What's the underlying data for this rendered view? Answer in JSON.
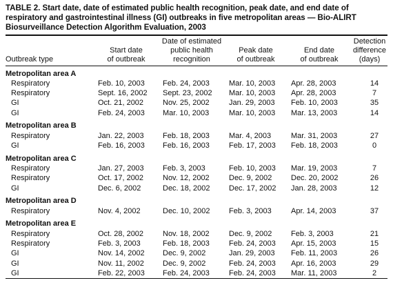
{
  "title": "TABLE 2. Start date, date of estimated public health recognition, peak date, and end date of respiratory and gastrointestinal illness (GI) outbreaks in five metropolitan areas — Bio-ALIRT Biosurveillance Detection Algorithm Evaluation, 2003",
  "columns": [
    [
      "Outbreak type"
    ],
    [
      "Start date",
      "of outbreak"
    ],
    [
      "Date of estimated",
      "public health",
      "recognition"
    ],
    [
      "Peak date",
      "of outbreak"
    ],
    [
      "End date",
      "of outbreak"
    ],
    [
      "Detection",
      "difference",
      "(days)"
    ]
  ],
  "groups": [
    {
      "name": "Metropolitan area A",
      "rows": [
        [
          "Respiratory",
          "Feb. 10, 2003",
          "Feb. 24, 2003",
          "Mar. 10, 2003",
          "Apr. 28, 2003",
          "14"
        ],
        [
          "Respiratory",
          "Sept. 16, 2002",
          "Sept. 23, 2002",
          "Mar. 10, 2003",
          "Apr. 28, 2003",
          "7"
        ],
        [
          "GI",
          "Oct. 21, 2002",
          "Nov. 25, 2002",
          "Jan. 29, 2003",
          "Feb. 10, 2003",
          "35"
        ],
        [
          "GI",
          "Feb. 24, 2003",
          "Mar. 10, 2003",
          "Mar. 10, 2003",
          "Mar. 13, 2003",
          "14"
        ]
      ]
    },
    {
      "name": "Metropolitan area B",
      "rows": [
        [
          "Respiratory",
          "Jan. 22, 2003",
          "Feb. 18, 2003",
          "Mar. 4, 2003",
          "Mar. 31, 2003",
          "27"
        ],
        [
          "GI",
          "Feb. 16, 2003",
          "Feb. 16, 2003",
          "Feb. 17, 2003",
          "Feb. 18, 2003",
          "0"
        ]
      ]
    },
    {
      "name": "Metropolitan area C",
      "rows": [
        [
          "Respiratory",
          "Jan. 27, 2003",
          "Feb. 3, 2003",
          "Feb. 10, 2003",
          "Mar. 19, 2003",
          "7"
        ],
        [
          "Respiratory",
          "Oct. 17, 2002",
          "Nov. 12, 2002",
          "Dec. 9, 2002",
          "Dec. 20, 2002",
          "26"
        ],
        [
          "GI",
          "Dec. 6, 2002",
          "Dec. 18, 2002",
          "Dec. 17, 2002",
          "Jan. 28, 2003",
          "12"
        ]
      ]
    },
    {
      "name": "Metropolitan area D",
      "rows": [
        [
          "Respiratory",
          "Nov. 4, 2002",
          "Dec. 10, 2002",
          "Feb. 3, 2003",
          "Apr. 14, 2003",
          "37"
        ]
      ]
    },
    {
      "name": "Metropolitan area E",
      "rows": [
        [
          "Respiratory",
          "Oct. 28, 2002",
          "Nov. 18, 2002",
          "Dec. 9, 2002",
          "Feb. 3, 2003",
          "21"
        ],
        [
          "Respiratory",
          "Feb. 3, 2003",
          "Feb. 18, 2003",
          "Feb. 24, 2003",
          "Apr. 15, 2003",
          "15"
        ],
        [
          "GI",
          "Nov. 14, 2002",
          "Dec. 9, 2002",
          "Jan. 29, 2003",
          "Feb. 11, 2003",
          "26"
        ],
        [
          "GI",
          "Nov. 11, 2002",
          "Dec. 9, 2002",
          "Feb. 24, 2003",
          "Apr. 16, 2003",
          "29"
        ],
        [
          "GI",
          "Feb. 22, 2003",
          "Feb. 24, 2003",
          "Feb. 24, 2003",
          "Mar. 11, 2003",
          "2"
        ]
      ]
    }
  ]
}
